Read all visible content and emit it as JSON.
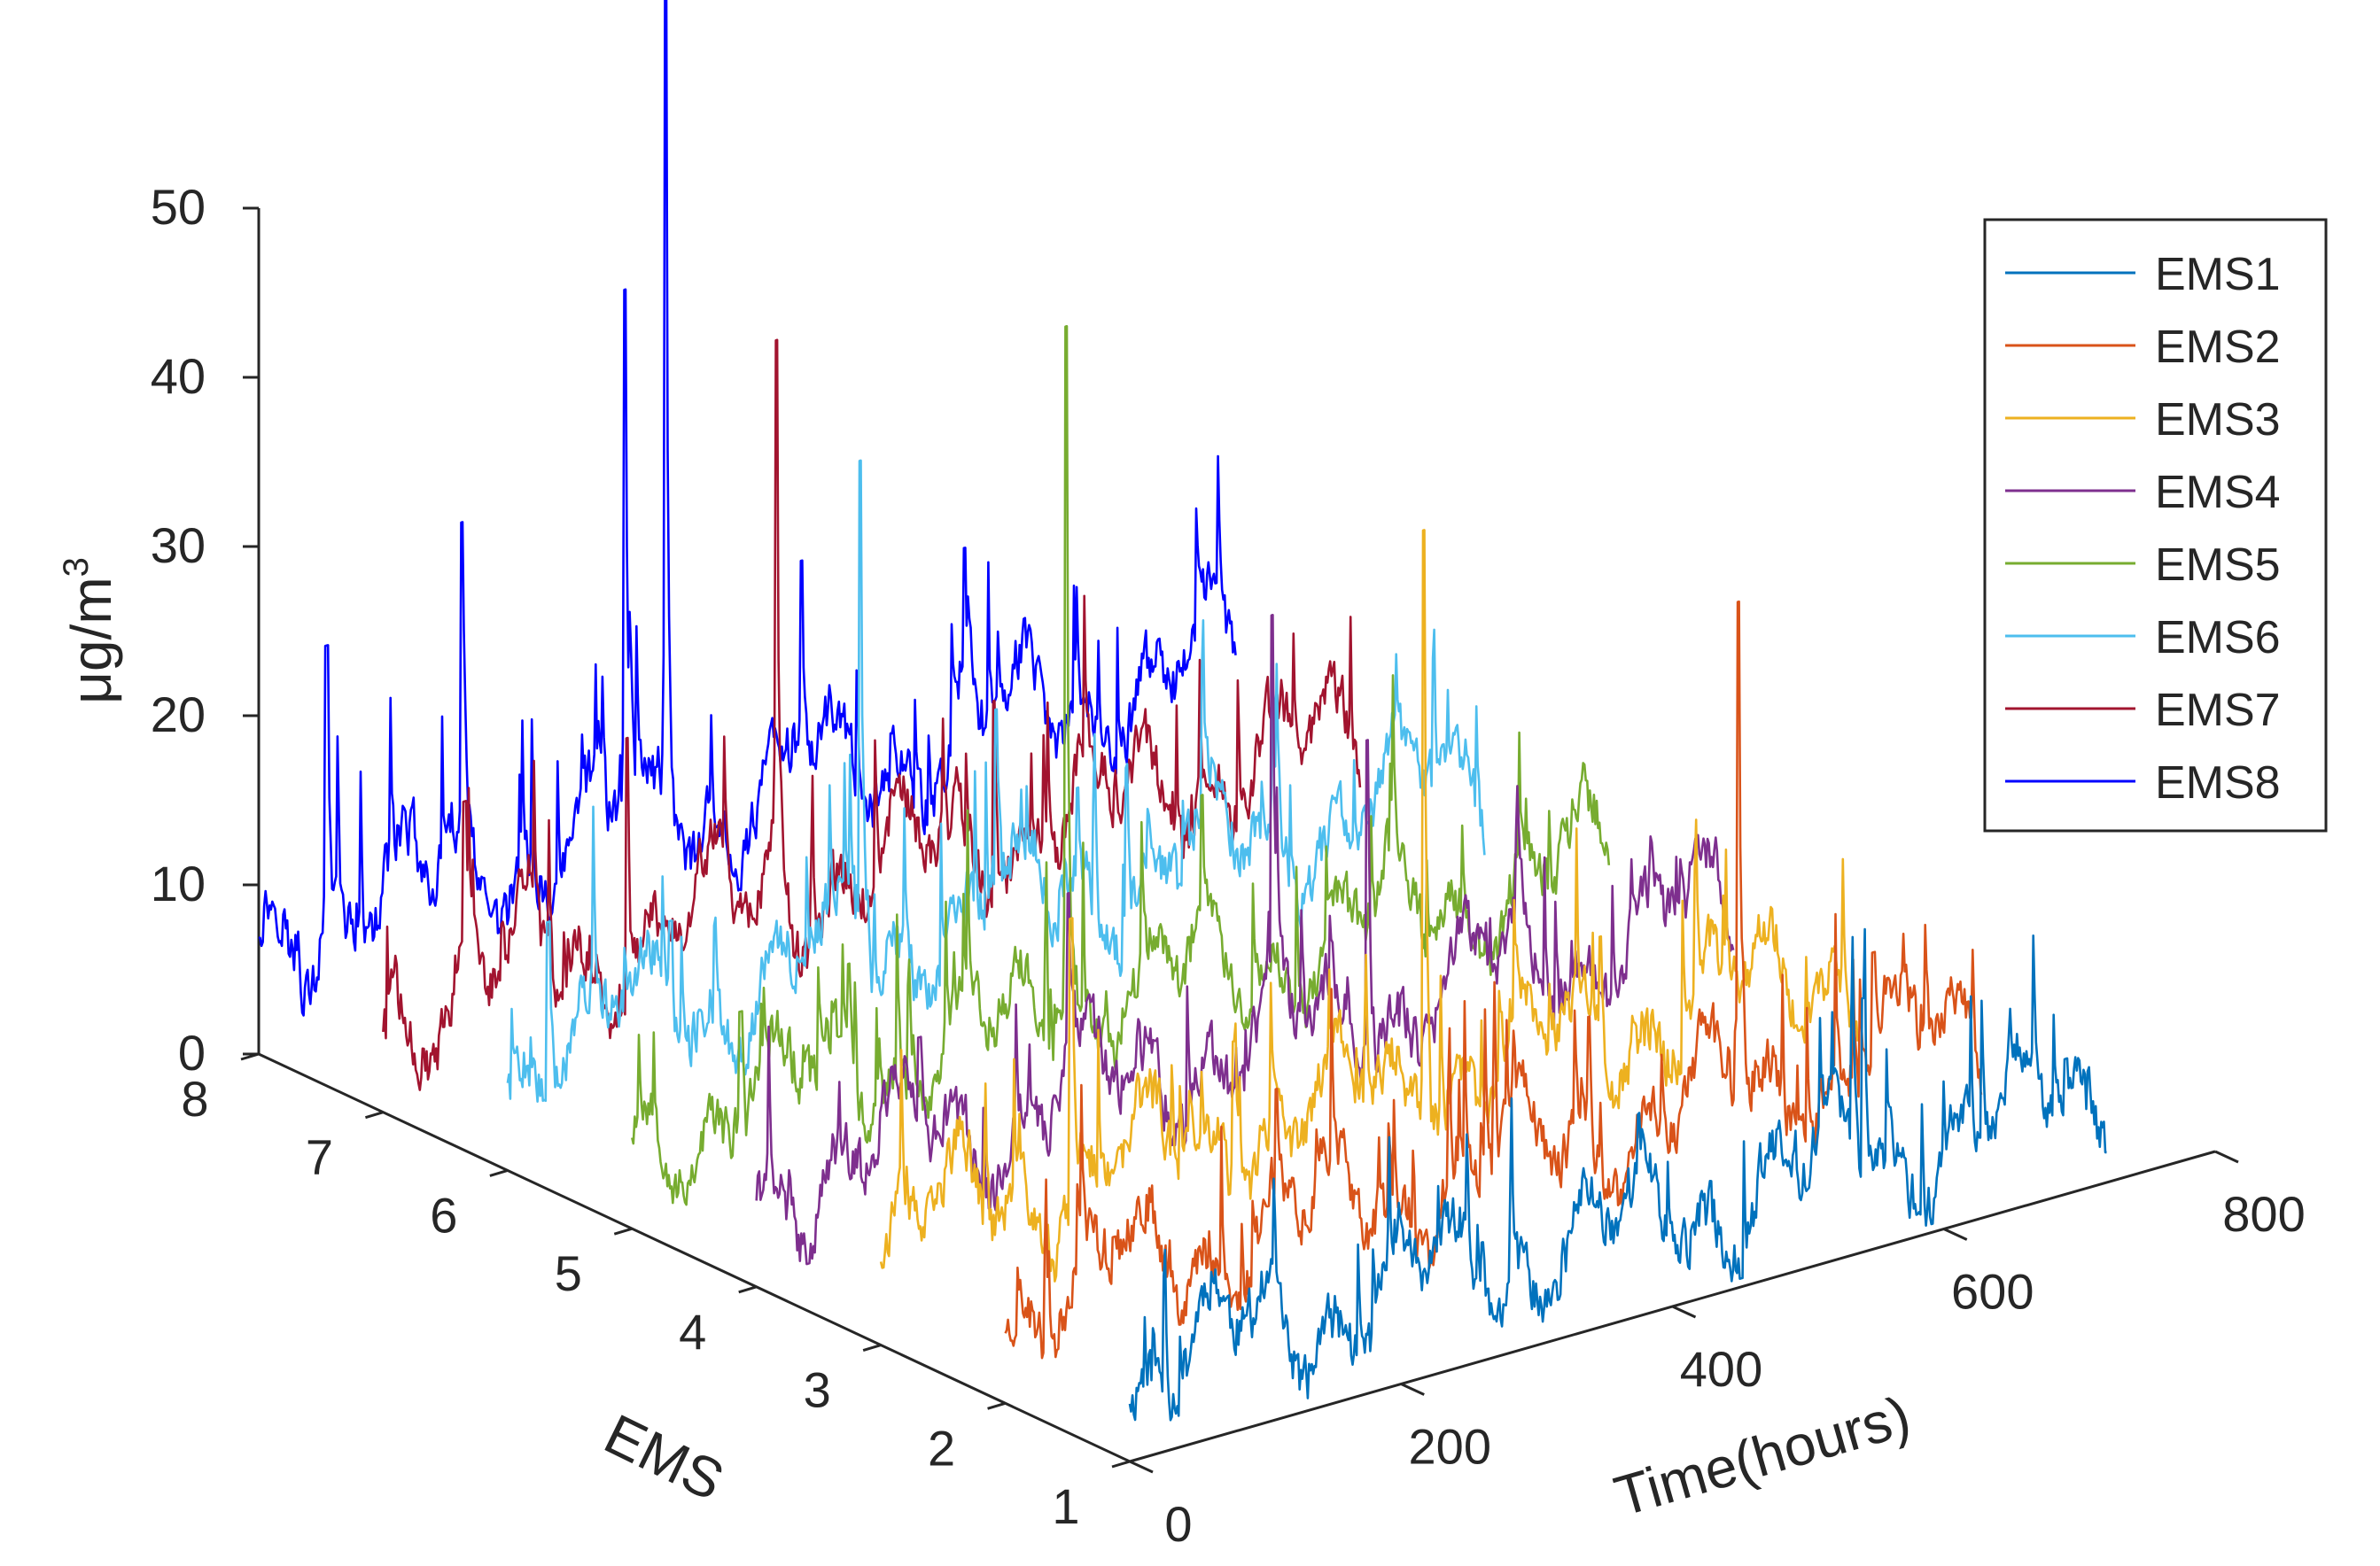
{
  "chart_data": {
    "type": "line",
    "subtype": "3d-waterfall",
    "title": "",
    "xlabel": "Time(hours)",
    "ylabel": "EMS",
    "zlabel_prefix": "μg/m",
    "zlabel_sup": "3",
    "xlim": [
      0,
      800
    ],
    "ylim": [
      1,
      8
    ],
    "zlim": [
      0,
      50
    ],
    "x_ticks": [
      "0",
      "200",
      "400",
      "600",
      "800"
    ],
    "y_ticks": [
      "1",
      "2",
      "3",
      "4",
      "5",
      "6",
      "7",
      "8"
    ],
    "z_ticks": [
      "0",
      "10",
      "20",
      "30",
      "40",
      "50"
    ],
    "legend_position": "top-right",
    "grid": false,
    "points_per_series": 720,
    "series": [
      {
        "name": "EMS1",
        "color": "#0072BD",
        "y": 1,
        "base": 5.5,
        "peaks": [
          [
            540,
            15
          ],
          [
            380,
            9
          ],
          [
            690,
            8
          ],
          [
            110,
            8
          ],
          [
            260,
            7
          ]
        ],
        "seed": 11
      },
      {
        "name": "EMS2",
        "color": "#D95319",
        "y": 2,
        "base": 6.0,
        "peaks": [
          [
            540,
            35
          ],
          [
            640,
            12
          ],
          [
            430,
            13
          ],
          [
            200,
            14
          ],
          [
            80,
            8
          ]
        ],
        "seed": 23
      },
      {
        "name": "EMS3",
        "color": "#EDB120",
        "y": 3,
        "base": 6.5,
        "peaks": [
          [
            400,
            39
          ],
          [
            530,
            12
          ],
          [
            140,
            22
          ],
          [
            260,
            12
          ],
          [
            650,
            9
          ]
        ],
        "seed": 37
      },
      {
        "name": "EMS4",
        "color": "#7E2F8E",
        "y": 4,
        "base": 6.0,
        "peaks": [
          [
            380,
            31
          ],
          [
            230,
            18
          ],
          [
            450,
            22
          ],
          [
            560,
            14
          ],
          [
            120,
            12
          ]
        ],
        "seed": 41
      },
      {
        "name": "EMS5",
        "color": "#77AC30",
        "y": 5,
        "base": 5.5,
        "peaks": [
          [
            320,
            46
          ],
          [
            160,
            12
          ],
          [
            420,
            16
          ],
          [
            560,
            8
          ],
          [
            80,
            11
          ]
        ],
        "seed": 53
      },
      {
        "name": "EMS6",
        "color": "#4DBEEE",
        "y": 6,
        "base": 7.0,
        "peaks": [
          [
            260,
            36
          ],
          [
            420,
            13
          ],
          [
            360,
            19
          ],
          [
            120,
            12
          ],
          [
            30,
            14
          ]
        ],
        "seed": 67
      },
      {
        "name": "EMS7",
        "color": "#A2142F",
        "y": 7,
        "base": 6.0,
        "peaks": [
          [
            290,
            39
          ],
          [
            450,
            14
          ],
          [
            180,
            18
          ],
          [
            560,
            10
          ],
          [
            60,
            17
          ]
        ],
        "seed": 79
      },
      {
        "name": "EMS8",
        "color": "#0000FF",
        "y": 8,
        "base": 7.0,
        "peaks": [
          [
            300,
            56
          ],
          [
            270,
            39
          ],
          [
            150,
            28
          ],
          [
            520,
            18
          ],
          [
            50,
            23
          ],
          [
            400,
            20
          ]
        ],
        "seed": 97
      }
    ]
  }
}
